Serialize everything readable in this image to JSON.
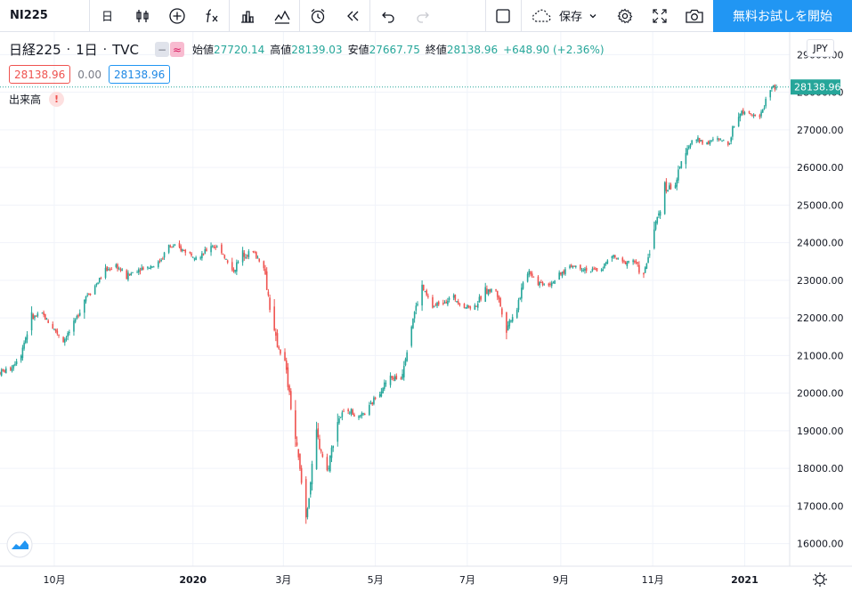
{
  "toolbar": {
    "symbol": "NI225",
    "interval": "日",
    "save_label": "保存",
    "trial_label": "無料お試しを開始"
  },
  "legend": {
    "title": "日経225",
    "interval": "1日",
    "source": "TVC",
    "open_label": "始値",
    "open": "27720.14",
    "high_label": "高値",
    "high": "28139.03",
    "low_label": "安値",
    "low": "27667.75",
    "close_label": "終値",
    "close": "28138.96",
    "change": "+648.90 (+2.36%)",
    "pill_grey": "−",
    "pill_pink": "≈"
  },
  "quote": {
    "bid": "28138.96",
    "spread": "0.00",
    "ask": "28138.96"
  },
  "volume": {
    "label": "出来高",
    "warning": "!"
  },
  "currency": "JPY",
  "colors": {
    "up": "#26a69a",
    "down": "#ef5350",
    "grid": "#f0f3fa",
    "last_price": "#26a69a",
    "accent": "#2196f3"
  },
  "chart_data": {
    "type": "candlestick",
    "title": "",
    "ylim": [
      15400,
      29600
    ],
    "yticks": [
      16000,
      17000,
      18000,
      19000,
      20000,
      21000,
      22000,
      23000,
      24000,
      25000,
      26000,
      27000,
      28000,
      29000
    ],
    "ytick_labels": [
      "16000.00",
      "17000.00",
      "18000.00",
      "19000.00",
      "20000.00",
      "21000.00",
      "22000.00",
      "23000.00",
      "24000.00",
      "25000.00",
      "26000.00",
      "27000.00",
      "28000.00",
      "29000.00"
    ],
    "last_price": 28138.96,
    "last_price_label": "28138.96",
    "x_start": "2019-08-26",
    "x_end": "2021-01-22",
    "xticks": [
      {
        "date": "2019-10-01",
        "label": "10月",
        "bold": false
      },
      {
        "date": "2020-01-01",
        "label": "2020",
        "bold": true
      },
      {
        "date": "2020-03-01",
        "label": "3月",
        "bold": false
      },
      {
        "date": "2020-05-01",
        "label": "5月",
        "bold": false
      },
      {
        "date": "2020-07-01",
        "label": "7月",
        "bold": false
      },
      {
        "date": "2020-09-01",
        "label": "9月",
        "bold": false
      },
      {
        "date": "2020-11-01",
        "label": "11月",
        "bold": false
      },
      {
        "date": "2021-01-01",
        "label": "2021",
        "bold": true
      }
    ],
    "close_path": [
      [
        "2019-08-26",
        20550
      ],
      [
        "2019-09-02",
        20650
      ],
      [
        "2019-09-09",
        21100
      ],
      [
        "2019-09-16",
        22000
      ],
      [
        "2019-09-23",
        22100
      ],
      [
        "2019-09-30",
        21750
      ],
      [
        "2019-10-07",
        21400
      ],
      [
        "2019-10-14",
        21800
      ],
      [
        "2019-10-21",
        22550
      ],
      [
        "2019-10-28",
        22850
      ],
      [
        "2019-11-04",
        23250
      ],
      [
        "2019-11-11",
        23400
      ],
      [
        "2019-11-18",
        23100
      ],
      [
        "2019-11-25",
        23300
      ],
      [
        "2019-12-02",
        23350
      ],
      [
        "2019-12-09",
        23450
      ],
      [
        "2019-12-16",
        23900
      ],
      [
        "2019-12-23",
        23850
      ],
      [
        "2020-01-06",
        23600
      ],
      [
        "2020-01-13",
        23950
      ],
      [
        "2020-01-20",
        23800
      ],
      [
        "2020-01-27",
        23200
      ],
      [
        "2020-02-03",
        23700
      ],
      [
        "2020-02-10",
        23750
      ],
      [
        "2020-02-17",
        23400
      ],
      [
        "2020-02-24",
        21500
      ],
      [
        "2020-03-02",
        20800
      ],
      [
        "2020-03-09",
        18800
      ],
      [
        "2020-03-16",
        16700
      ],
      [
        "2020-03-23",
        18900
      ],
      [
        "2020-03-30",
        17900
      ],
      [
        "2020-04-06",
        19300
      ],
      [
        "2020-04-13",
        19600
      ],
      [
        "2020-04-20",
        19300
      ],
      [
        "2020-04-27",
        19600
      ],
      [
        "2020-05-04",
        20100
      ],
      [
        "2020-05-11",
        20400
      ],
      [
        "2020-05-18",
        20400
      ],
      [
        "2020-05-25",
        21900
      ],
      [
        "2020-06-01",
        22800
      ],
      [
        "2020-06-08",
        22300
      ],
      [
        "2020-06-15",
        22450
      ],
      [
        "2020-06-22",
        22550
      ],
      [
        "2020-06-29",
        22300
      ],
      [
        "2020-07-06",
        22300
      ],
      [
        "2020-07-13",
        22700
      ],
      [
        "2020-07-20",
        22750
      ],
      [
        "2020-07-27",
        21750
      ],
      [
        "2020-08-03",
        22300
      ],
      [
        "2020-08-10",
        23300
      ],
      [
        "2020-08-17",
        22950
      ],
      [
        "2020-08-24",
        22900
      ],
      [
        "2020-08-31",
        23100
      ],
      [
        "2020-09-07",
        23400
      ],
      [
        "2020-09-14",
        23350
      ],
      [
        "2020-09-21",
        23250
      ],
      [
        "2020-09-28",
        23300
      ],
      [
        "2020-10-05",
        23650
      ],
      [
        "2020-10-12",
        23450
      ],
      [
        "2020-10-19",
        23550
      ],
      [
        "2020-10-26",
        23100
      ],
      [
        "2020-11-02",
        24350
      ],
      [
        "2020-11-09",
        25400
      ],
      [
        "2020-11-16",
        25550
      ],
      [
        "2020-11-23",
        26550
      ],
      [
        "2020-11-30",
        26750
      ],
      [
        "2020-12-07",
        26650
      ],
      [
        "2020-12-14",
        26750
      ],
      [
        "2020-12-21",
        26650
      ],
      [
        "2020-12-28",
        27450
      ],
      [
        "2021-01-04",
        27500
      ],
      [
        "2021-01-11",
        27300
      ],
      [
        "2021-01-18",
        28138.96
      ]
    ]
  }
}
